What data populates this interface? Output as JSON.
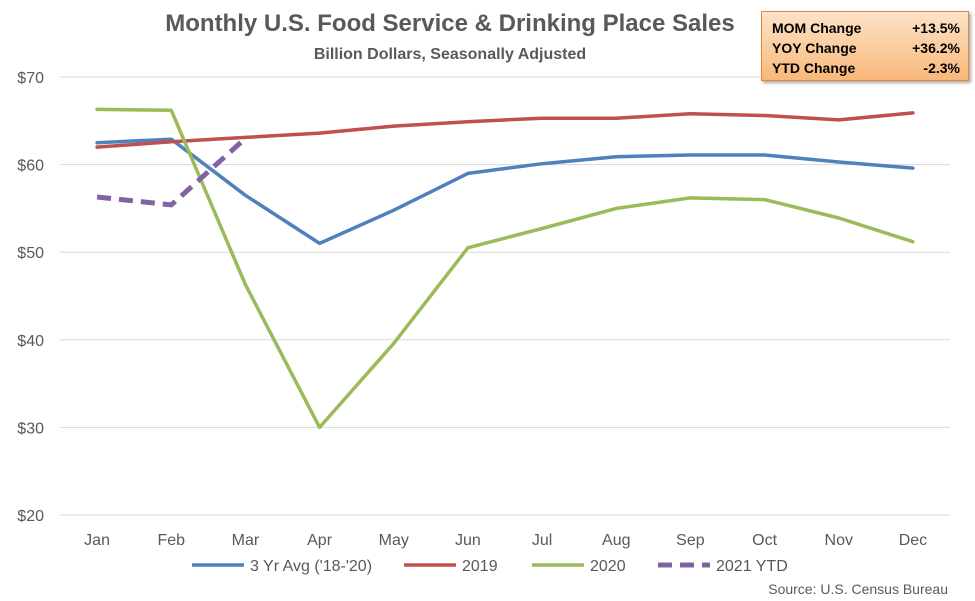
{
  "chart_data": {
    "type": "line",
    "title": "Monthly U.S. Food Service & Drinking Place Sales",
    "subtitle": "Billion Dollars, Seasonally Adjusted",
    "categories": [
      "Jan",
      "Feb",
      "Mar",
      "Apr",
      "May",
      "Jun",
      "Jul",
      "Aug",
      "Sep",
      "Oct",
      "Nov",
      "Dec"
    ],
    "y_ticks": [
      "$20",
      "$30",
      "$40",
      "$50",
      "$60",
      "$70"
    ],
    "ylim": [
      20,
      70
    ],
    "grid": "horizontal",
    "legend_position": "bottom",
    "series": [
      {
        "name": "3 Yr Avg ('18-'20)",
        "color": "#4f81bd",
        "dashed": false,
        "values": [
          62.5,
          62.9,
          56.5,
          51.0,
          54.8,
          59.0,
          60.1,
          60.9,
          61.1,
          61.1,
          60.3,
          59.6
        ]
      },
      {
        "name": "2019",
        "color": "#c0504d",
        "dashed": false,
        "values": [
          62.0,
          62.6,
          63.1,
          63.6,
          64.4,
          64.9,
          65.3,
          65.3,
          65.8,
          65.6,
          65.1,
          65.9
        ]
      },
      {
        "name": "2020",
        "color": "#9bbb59",
        "dashed": false,
        "values": [
          66.3,
          66.2,
          46.3,
          30.0,
          39.6,
          50.5,
          52.7,
          55.0,
          56.2,
          56.0,
          53.9,
          51.2
        ]
      },
      {
        "name": "2021 YTD",
        "color": "#8064a2",
        "dashed": true,
        "values": [
          56.3,
          55.4,
          63.0,
          null,
          null,
          null,
          null,
          null,
          null,
          null,
          null,
          null
        ]
      }
    ],
    "stats": [
      {
        "label": "MOM Change",
        "value": "+13.5%"
      },
      {
        "label": "YOY Change",
        "value": "+36.2%"
      },
      {
        "label": "YTD Change",
        "value": "-2.3%"
      }
    ],
    "source": "Source: U.S. Census Bureau"
  }
}
